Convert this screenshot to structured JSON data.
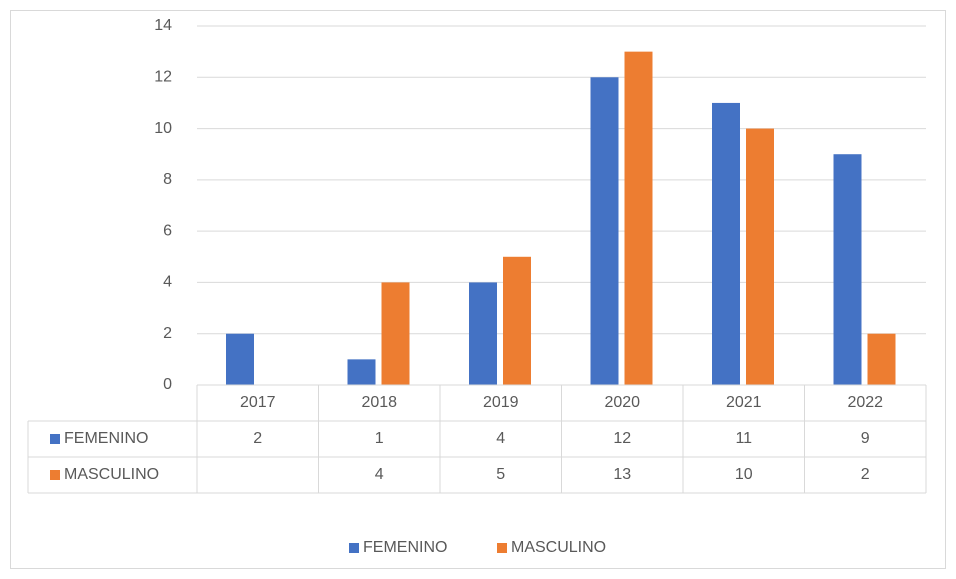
{
  "chart_data": {
    "type": "bar",
    "categories": [
      "2017",
      "2018",
      "2019",
      "2020",
      "2021",
      "2022"
    ],
    "series": [
      {
        "name": "FEMENINO",
        "color": "#4472c4",
        "values": [
          2,
          1,
          4,
          12,
          11,
          9
        ]
      },
      {
        "name": "MASCULINO",
        "color": "#ed7d31",
        "values": [
          null,
          4,
          5,
          13,
          10,
          2
        ]
      }
    ],
    "ylim": [
      0,
      14
    ],
    "yticks": [
      0,
      2,
      4,
      6,
      8,
      10,
      12,
      14
    ],
    "grid": true,
    "legend": "bottom",
    "data_table": true
  }
}
